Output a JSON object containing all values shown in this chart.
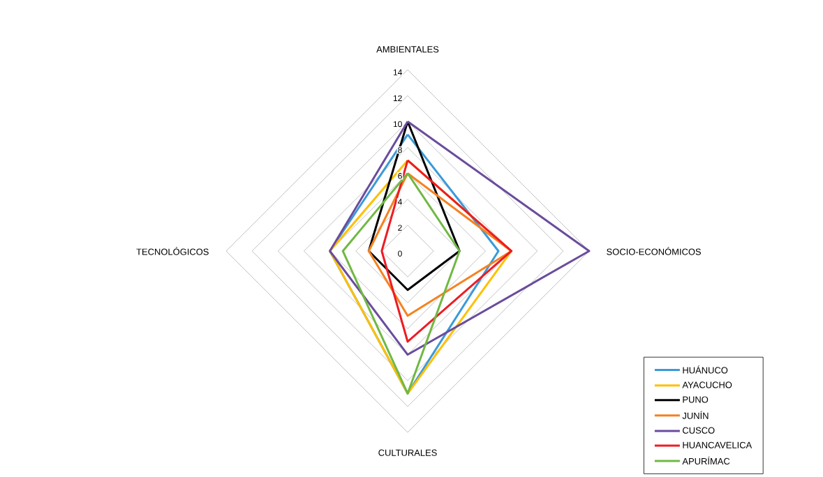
{
  "chart_data": {
    "type": "radar",
    "categories": [
      "AMBIENTALES",
      "SOCIO-ECONÓMICOS",
      "CULTURALES",
      "TECNOLÓGICOS"
    ],
    "series": [
      {
        "name": "HUÁNUCO",
        "color": "#3a9ad9",
        "values": [
          9,
          7,
          11,
          6
        ]
      },
      {
        "name": "AYACUCHO",
        "color": "#ffc000",
        "values": [
          7,
          8,
          11,
          6
        ]
      },
      {
        "name": "PUNO",
        "color": "#000000",
        "values": [
          10,
          4,
          3,
          3
        ]
      },
      {
        "name": "JUNÍN",
        "color": "#f58220",
        "values": [
          6,
          8,
          5,
          3
        ]
      },
      {
        "name": "CUSCO",
        "color": "#6a4c9c",
        "values": [
          10,
          14,
          8,
          6
        ]
      },
      {
        "name": "HUANCAVELICA",
        "color": "#ed1c24",
        "values": [
          7,
          8,
          7,
          2
        ]
      },
      {
        "name": "APURÍMAC",
        "color": "#70b843",
        "values": [
          6,
          4,
          11,
          5
        ]
      }
    ],
    "ylim": [
      0,
      14
    ],
    "yticks": [
      0,
      2,
      4,
      6,
      8,
      10,
      12,
      14
    ],
    "grid": true,
    "legend": "bottom right"
  }
}
